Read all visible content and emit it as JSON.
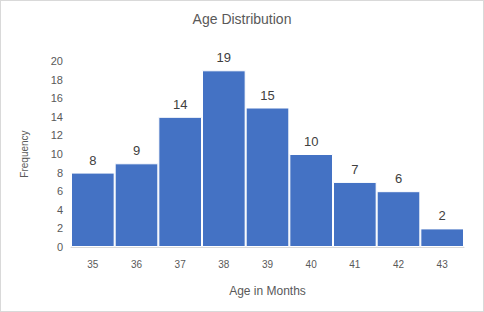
{
  "chart_data": {
    "type": "bar",
    "title": "Age Distribution",
    "x_label": "Age in Months",
    "y_label": "Frequency",
    "categories": [
      "35",
      "36",
      "37",
      "38",
      "39",
      "40",
      "41",
      "42",
      "43"
    ],
    "values": [
      8,
      9,
      14,
      19,
      15,
      10,
      7,
      6,
      2
    ],
    "color": "#4472c4",
    "ylim": [
      0,
      20
    ],
    "yticks": [
      0,
      2,
      4,
      6,
      8,
      10,
      12,
      14,
      16,
      18,
      20
    ],
    "grid": false,
    "data_labels": true
  }
}
